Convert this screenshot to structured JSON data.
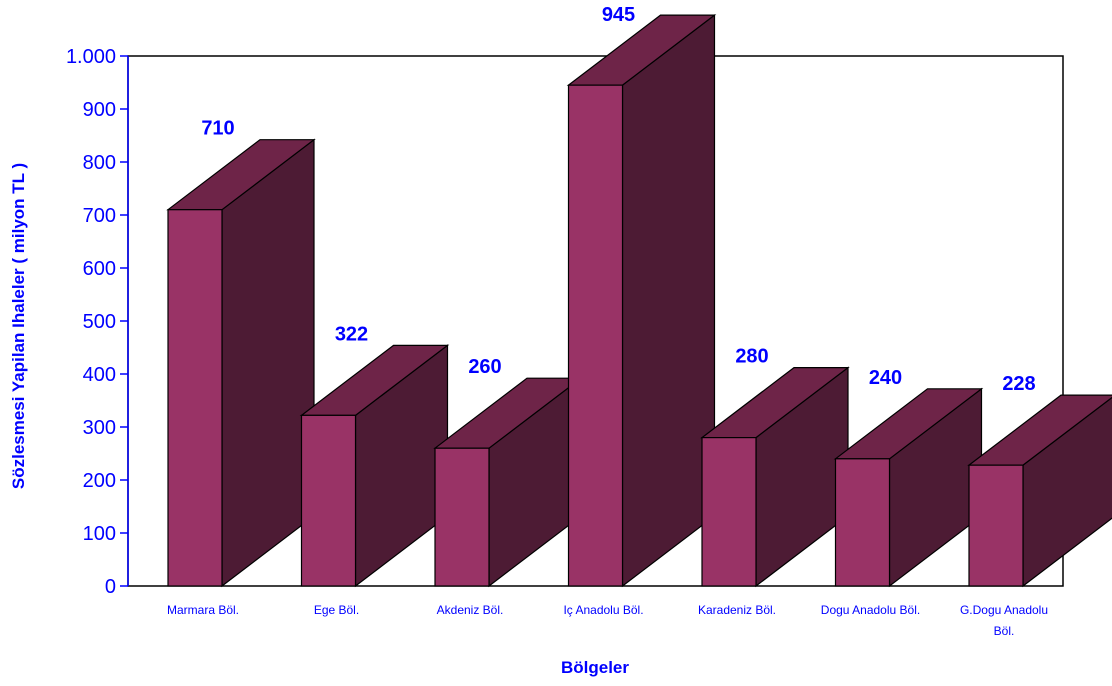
{
  "chart_data": {
    "type": "bar",
    "style": "3d",
    "categories": [
      [
        "Marmara Böl."
      ],
      [
        "Ege Böl."
      ],
      [
        "Akdeniz Böl."
      ],
      [
        "Iç Anadolu Böl."
      ],
      [
        "Karadeniz Böl."
      ],
      [
        "Dogu Anadolu Böl."
      ],
      [
        "G.Dogu Anadolu",
        "Böl."
      ]
    ],
    "values": [
      710,
      322,
      260,
      945,
      280,
      240,
      228
    ],
    "value_labels": [
      "710",
      "322",
      "260",
      "945",
      "280",
      "240",
      "228"
    ],
    "ylim": [
      0,
      1000
    ],
    "yticks": [
      0,
      100,
      200,
      300,
      400,
      500,
      600,
      700,
      800,
      900,
      1000
    ],
    "ytick_labels": [
      "0",
      "100",
      "200",
      "300",
      "400",
      "500",
      "600",
      "700",
      "800",
      "900",
      "1.000"
    ],
    "xlabel": "Bölgeler",
    "ylabel": "Sözlesmesi Yapilan Ihaleler ( milyon TL )",
    "grid": false,
    "legend": "none",
    "colors": {
      "bar_front": "#993366",
      "bar_top": "#6e2448",
      "bar_side": "#4d1b34",
      "text": "#0000ff",
      "axis": "#0000ff",
      "outline": "#000000"
    }
  }
}
